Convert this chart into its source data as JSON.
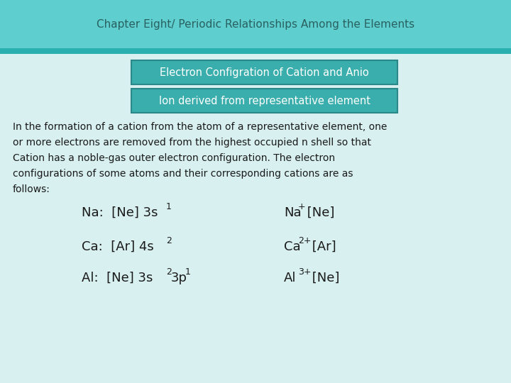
{
  "title": "Chapter Eight/ Periodic Relationships Among the Elements",
  "header_bg": "#5ecece",
  "header_stripe_bg": "#2ab0b0",
  "header_text_color": "#2a6060",
  "box1_text": "Electron Configration of Cation and Anio",
  "box2_text": "Ion derived from representative element",
  "box_bg": "#3aadad",
  "box_border": "#2a8888",
  "box_text_color": "white",
  "body_bg": "#d8f0f0",
  "body_text_color": "#1a1a1a",
  "para_line1": "In the formation of a cation from the atom of a representative element, one",
  "para_line2": "or more electrons are removed from the highest occupied n shell so that",
  "para_line3": "Cation has a noble-gas outer electron configuration. The electron",
  "para_line4": "configurations of some atoms and their corresponding cations are as",
  "para_line5": "follows:",
  "fig_width": 7.2,
  "fig_height": 5.4,
  "dpi": 100
}
